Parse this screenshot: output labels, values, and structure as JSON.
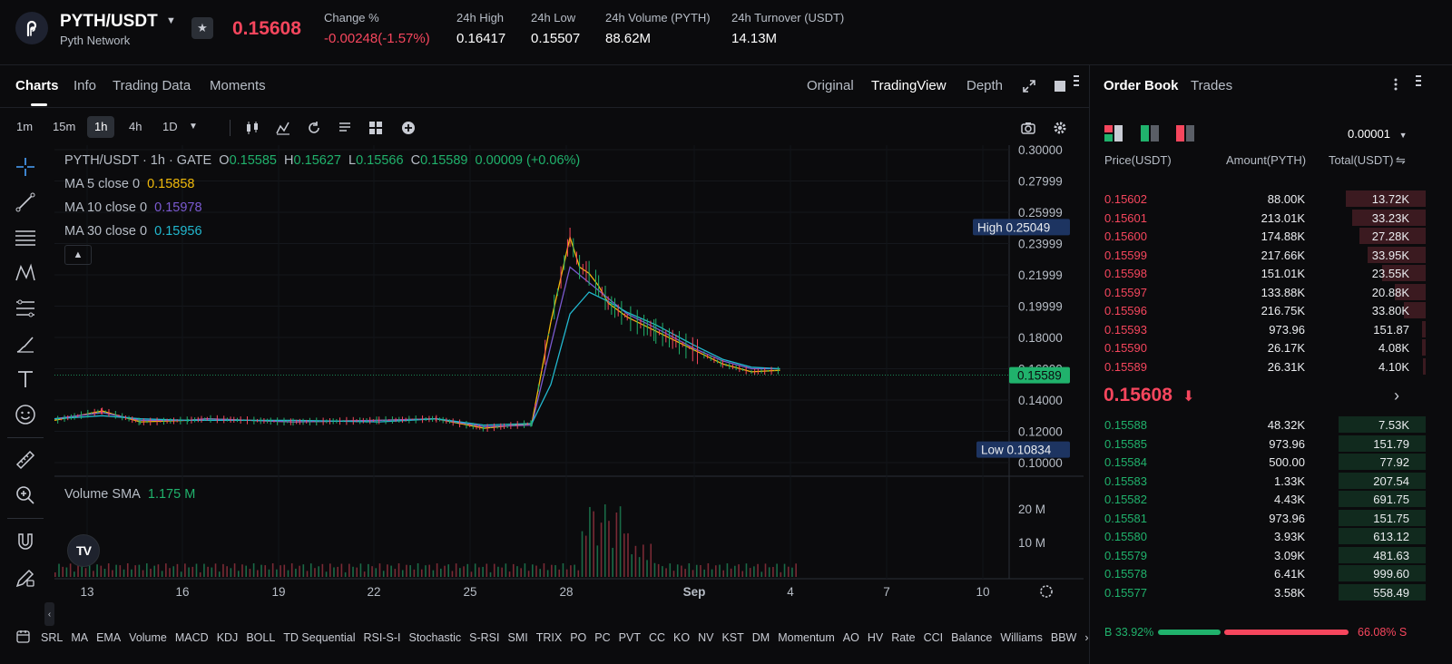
{
  "ticker": {
    "pair": "PYTH/USDT",
    "network": "Pyth Network",
    "last_price": "0.15608",
    "stats": [
      {
        "label": "Change %",
        "value": "-0.00248(-1.57%)",
        "negative": true
      },
      {
        "label": "24h High",
        "value": "0.16417"
      },
      {
        "label": "24h Low",
        "value": "0.15507"
      },
      {
        "label": "24h Volume (PYTH)",
        "value": "88.62M"
      },
      {
        "label": "24h Turnover (USDT)",
        "value": "14.13M"
      }
    ]
  },
  "chart_tabs": [
    "Charts",
    "Info",
    "Trading Data",
    "Moments"
  ],
  "view_tabs": [
    "Original",
    "TradingView",
    "Depth"
  ],
  "timeframes": [
    "1m",
    "15m",
    "1h",
    "4h",
    "1D"
  ],
  "active_timeframe": "1h",
  "legend": {
    "title": "PYTH/USDT · 1h · GATE",
    "ohlc": [
      {
        "k": "O",
        "v": "0.15585"
      },
      {
        "k": "H",
        "v": "0.15627"
      },
      {
        "k": "L",
        "v": "0.15566"
      },
      {
        "k": "C",
        "v": "0.15589"
      }
    ],
    "change": "0.00009 (+0.06%)",
    "ma5_label": "MA 5 close 0",
    "ma5_value": "0.15858",
    "ma10_label": "MA 10 close 0",
    "ma10_value": "0.15978",
    "ma30_label": "MA 30 close 0",
    "ma30_value": "0.15956",
    "volume_label": "Volume SMA",
    "volume_value": "1.175 M"
  },
  "markers": {
    "high_label": "High",
    "high_value": "0.25049",
    "low_label": "Low",
    "low_value": "0.10834",
    "current_value": "0.15589"
  },
  "chart_data": {
    "type": "line",
    "price_axis_ticks": [
      "0.30000",
      "0.27999",
      "0.25999",
      "0.23999",
      "0.21999",
      "0.19999",
      "0.18000",
      "0.16000",
      "0.14000",
      "0.12000",
      "0.10000"
    ],
    "volume_axis_ticks": [
      "20 M",
      "10 M"
    ],
    "x_ticks": [
      "13",
      "16",
      "19",
      "22",
      "25",
      "28",
      "Sep",
      "4",
      "7",
      "10"
    ],
    "ylim": [
      0.1,
      0.3
    ],
    "series": [
      {
        "name": "MA 5",
        "color": "#f0b90b",
        "x": [
          0,
          5,
          9,
          14,
          16,
          25,
          34,
          40,
          45,
          50,
          52,
          54,
          55,
          56,
          57,
          58,
          60,
          63,
          67,
          70,
          73,
          76
        ],
        "values": [
          0.127,
          0.133,
          0.126,
          0.127,
          0.128,
          0.126,
          0.127,
          0.128,
          0.122,
          0.125,
          0.19,
          0.244,
          0.225,
          0.221,
          0.213,
          0.202,
          0.193,
          0.184,
          0.172,
          0.163,
          0.158,
          0.159
        ]
      },
      {
        "name": "MA 10",
        "color": "#7b5ad1",
        "x": [
          0,
          5,
          9,
          14,
          16,
          25,
          34,
          40,
          45,
          50,
          52,
          54,
          56,
          58,
          60,
          63,
          67,
          70,
          73,
          76
        ],
        "values": [
          0.128,
          0.132,
          0.127,
          0.127,
          0.128,
          0.126,
          0.127,
          0.128,
          0.123,
          0.124,
          0.175,
          0.225,
          0.215,
          0.205,
          0.195,
          0.186,
          0.173,
          0.165,
          0.16,
          0.16
        ]
      },
      {
        "name": "MA 30",
        "color": "#22b8cf",
        "x": [
          0,
          5,
          9,
          14,
          16,
          25,
          34,
          40,
          45,
          50,
          52,
          54,
          56,
          58,
          60,
          63,
          67,
          70,
          73,
          76
        ],
        "values": [
          0.128,
          0.13,
          0.128,
          0.127,
          0.127,
          0.127,
          0.126,
          0.128,
          0.124,
          0.125,
          0.15,
          0.195,
          0.209,
          0.203,
          0.196,
          0.188,
          0.175,
          0.166,
          0.161,
          0.16
        ]
      }
    ]
  },
  "indicators": [
    "SRL",
    "MA",
    "EMA",
    "Volume",
    "MACD",
    "KDJ",
    "BOLL",
    "TD Sequential",
    "RSI-S-I",
    "Stochastic",
    "S-RSI",
    "SMI",
    "TRIX",
    "PO",
    "PC",
    "PVT",
    "CC",
    "KO",
    "NV",
    "KST",
    "DM",
    "Momentum",
    "AO",
    "HV",
    "Rate",
    "CCI",
    "Balance",
    "Williams",
    "BBW"
  ],
  "orderbook": {
    "tabs": [
      "Order Book",
      "Trades"
    ],
    "precision": "0.00001",
    "headers": {
      "price": "Price(USDT)",
      "amount": "Amount(PYTH)",
      "total": "Total(USDT)"
    },
    "asks": [
      {
        "price": "0.15602",
        "amount": "88.00K",
        "total": "13.72K",
        "depth": 0.85
      },
      {
        "price": "0.15601",
        "amount": "213.01K",
        "total": "33.23K",
        "depth": 0.78
      },
      {
        "price": "0.15600",
        "amount": "174.88K",
        "total": "27.28K",
        "depth": 0.7
      },
      {
        "price": "0.15599",
        "amount": "217.66K",
        "total": "33.95K",
        "depth": 0.62
      },
      {
        "price": "0.15598",
        "amount": "151.01K",
        "total": "23.55K",
        "depth": 0.46
      },
      {
        "price": "0.15597",
        "amount": "133.88K",
        "total": "20.88K",
        "depth": 0.33
      },
      {
        "price": "0.15596",
        "amount": "216.75K",
        "total": "33.80K",
        "depth": 0.23
      },
      {
        "price": "0.15593",
        "amount": "973.96",
        "total": "151.87",
        "depth": 0.04
      },
      {
        "price": "0.15590",
        "amount": "26.17K",
        "total": "4.08K",
        "depth": 0.04
      },
      {
        "price": "0.15589",
        "amount": "26.31K",
        "total": "4.10K",
        "depth": 0.03
      }
    ],
    "mid_price": "0.15608",
    "bids": [
      {
        "price": "0.15588",
        "amount": "48.32K",
        "total": "7.53K",
        "depth": 0.92
      },
      {
        "price": "0.15585",
        "amount": "973.96",
        "total": "151.79",
        "depth": 0.92
      },
      {
        "price": "0.15584",
        "amount": "500.00",
        "total": "77.92",
        "depth": 0.92
      },
      {
        "price": "0.15583",
        "amount": "1.33K",
        "total": "207.54",
        "depth": 0.92
      },
      {
        "price": "0.15582",
        "amount": "4.43K",
        "total": "691.75",
        "depth": 0.92
      },
      {
        "price": "0.15581",
        "amount": "973.96",
        "total": "151.75",
        "depth": 0.92
      },
      {
        "price": "0.15580",
        "amount": "3.93K",
        "total": "613.12",
        "depth": 0.92
      },
      {
        "price": "0.15579",
        "amount": "3.09K",
        "total": "481.63",
        "depth": 0.92
      },
      {
        "price": "0.15578",
        "amount": "6.41K",
        "total": "999.60",
        "depth": 0.92
      },
      {
        "price": "0.15577",
        "amount": "3.58K",
        "total": "558.49",
        "depth": 0.92
      }
    ],
    "buy_label": "B",
    "buy_ratio": "33.92%",
    "sell_label": "S",
    "sell_ratio": "66.08%",
    "buy_fraction": 0.3392
  },
  "colors": {
    "up": "#20b26c",
    "down": "#f6465d",
    "accent": "#f0b90b"
  }
}
